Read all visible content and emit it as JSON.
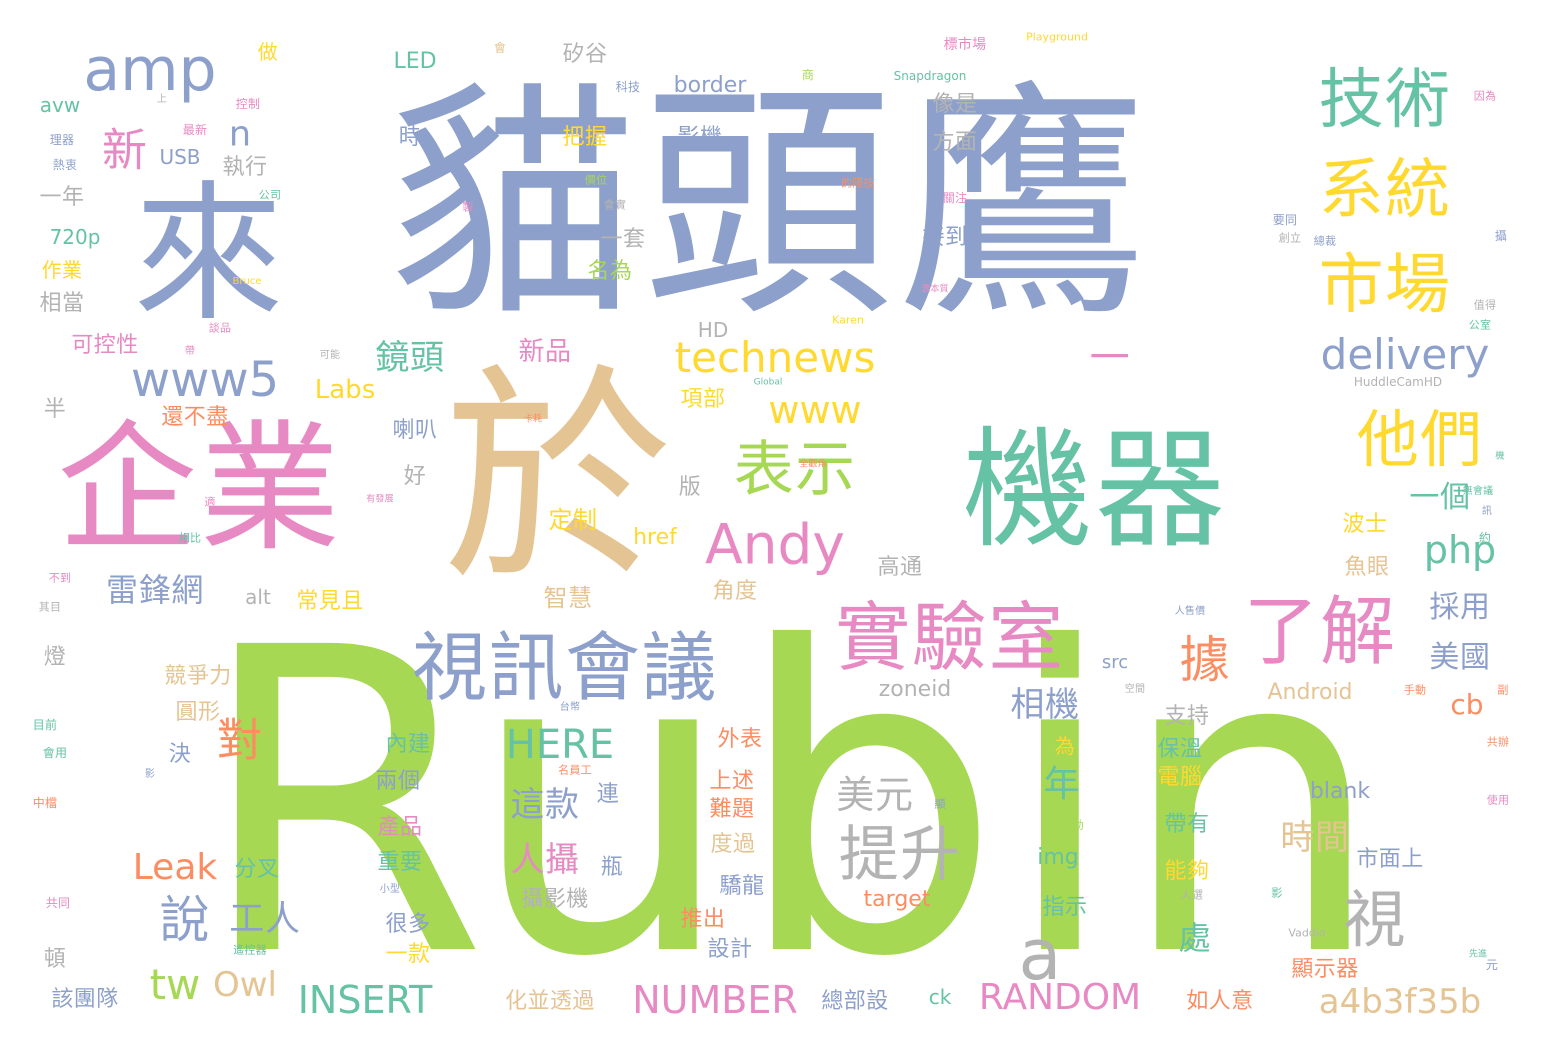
{
  "colors": {
    "green": "#a6d854",
    "blue": "#8da0cb",
    "teal": "#66c2a5",
    "orange": "#fc8d62",
    "pink": "#e78ac3",
    "yellow": "#ffd92f",
    "tan": "#e5c494",
    "gray": "#b3b3b3"
  },
  "words": [
    {
      "text": "Rubin",
      "color": "green"
    },
    {
      "text": "貓頭鷹",
      "color": "blue"
    },
    {
      "text": "於",
      "color": "tan"
    },
    {
      "text": "機器",
      "color": "teal"
    },
    {
      "text": "來",
      "color": "blue"
    },
    {
      "text": "企業",
      "color": "pink"
    },
    {
      "text": "一",
      "color": "pink"
    },
    {
      "text": "視訊會議",
      "color": "blue"
    },
    {
      "text": "實驗室",
      "color": "pink"
    },
    {
      "text": "了解",
      "color": "pink"
    },
    {
      "text": "技術",
      "color": "teal"
    },
    {
      "text": "系統",
      "color": "yellow"
    },
    {
      "text": "市場",
      "color": "yellow"
    },
    {
      "text": "他們",
      "color": "yellow"
    },
    {
      "text": "amp",
      "color": "blue"
    },
    {
      "text": "www5",
      "color": "blue"
    },
    {
      "text": "表示",
      "color": "green"
    },
    {
      "text": "technews",
      "color": "yellow"
    },
    {
      "text": "delivery",
      "color": "blue"
    },
    {
      "text": "Andy",
      "color": "pink"
    },
    {
      "text": "提升",
      "color": "gray"
    },
    {
      "text": "視",
      "color": "gray"
    },
    {
      "text": "據",
      "color": "orange"
    },
    {
      "text": "a",
      "color": "gray"
    },
    {
      "text": "新",
      "color": "pink"
    },
    {
      "text": "n",
      "color": "blue"
    },
    {
      "text": "對",
      "color": "orange"
    },
    {
      "text": "說",
      "color": "blue"
    },
    {
      "text": "www",
      "color": "yellow"
    },
    {
      "text": "php",
      "color": "teal"
    },
    {
      "text": "NUMBER",
      "color": "pink"
    },
    {
      "text": "RANDOM",
      "color": "pink"
    },
    {
      "text": "INSERT",
      "color": "teal"
    },
    {
      "text": "a4b3f35b",
      "color": "tan"
    },
    {
      "text": "tw",
      "color": "green"
    },
    {
      "text": "Owl",
      "color": "tan"
    },
    {
      "text": "工人",
      "color": "blue"
    },
    {
      "text": "HERE",
      "color": "teal"
    },
    {
      "text": "Leak",
      "color": "orange"
    },
    {
      "text": "鏡頭",
      "color": "teal"
    },
    {
      "text": "雷鋒網",
      "color": "blue"
    },
    {
      "text": "Labs",
      "color": "yellow"
    },
    {
      "text": "相機",
      "color": "blue"
    },
    {
      "text": "人攝",
      "color": "pink"
    },
    {
      "text": "這款",
      "color": "blue"
    },
    {
      "text": "美元",
      "color": "gray"
    },
    {
      "text": "一個",
      "color": "teal"
    },
    {
      "text": "採用",
      "color": "blue"
    },
    {
      "text": "美國",
      "color": "blue"
    },
    {
      "text": "年",
      "color": "teal"
    },
    {
      "text": "時間",
      "color": "tan"
    },
    {
      "text": "處",
      "color": "teal"
    },
    {
      "text": "cb",
      "color": "orange"
    },
    {
      "text": "一年",
      "color": "gray"
    },
    {
      "text": "新品",
      "color": "pink"
    },
    {
      "text": "執行",
      "color": "gray"
    },
    {
      "text": "把握",
      "color": "yellow"
    },
    {
      "text": "影機",
      "color": "blue"
    },
    {
      "text": "border",
      "color": "blue"
    },
    {
      "text": "矽谷",
      "color": "gray"
    },
    {
      "text": "LED",
      "color": "teal"
    },
    {
      "text": "像是",
      "color": "gray"
    },
    {
      "text": "方面",
      "color": "gray"
    },
    {
      "text": "接到",
      "color": "blue"
    },
    {
      "text": "一套",
      "color": "gray"
    },
    {
      "text": "名為",
      "color": "green"
    },
    {
      "text": "定制",
      "color": "yellow"
    },
    {
      "text": "href",
      "color": "yellow"
    },
    {
      "text": "智慧",
      "color": "tan"
    },
    {
      "text": "常見且",
      "color": "yellow"
    },
    {
      "text": "角度",
      "color": "tan"
    },
    {
      "text": "高通",
      "color": "gray"
    },
    {
      "text": "alt",
      "color": "gray"
    },
    {
      "text": "項部",
      "color": "yellow"
    },
    {
      "text": "版",
      "color": "gray"
    },
    {
      "text": "好",
      "color": "gray"
    },
    {
      "text": "喇叭",
      "color": "blue"
    },
    {
      "text": "還不盡",
      "color": "orange"
    },
    {
      "text": "半",
      "color": "gray"
    },
    {
      "text": "可控性",
      "color": "pink"
    },
    {
      "text": "相當",
      "color": "gray"
    },
    {
      "text": "作業",
      "color": "yellow"
    },
    {
      "text": "720p",
      "color": "teal"
    },
    {
      "text": "USB",
      "color": "blue"
    },
    {
      "text": "avw",
      "color": "teal"
    },
    {
      "text": "做",
      "color": "yellow"
    },
    {
      "text": "時",
      "color": "blue"
    },
    {
      "text": "HD",
      "color": "gray"
    },
    {
      "text": "zoneid",
      "color": "gray"
    },
    {
      "text": "src",
      "color": "blue"
    },
    {
      "text": "Android",
      "color": "tan"
    },
    {
      "text": "波士",
      "color": "yellow"
    },
    {
      "text": "魚眼",
      "color": "tan"
    },
    {
      "text": "競爭力",
      "color": "tan"
    },
    {
      "text": "圓形",
      "color": "tan"
    },
    {
      "text": "決",
      "color": "blue"
    },
    {
      "text": "內建",
      "color": "teal"
    },
    {
      "text": "兩個",
      "color": "blue"
    },
    {
      "text": "外表",
      "color": "orange"
    },
    {
      "text": "上述",
      "color": "orange"
    },
    {
      "text": "難題",
      "color": "orange"
    },
    {
      "text": "度過",
      "color": "tan"
    },
    {
      "text": "驕龍",
      "color": "blue"
    },
    {
      "text": "推出",
      "color": "orange"
    },
    {
      "text": "設計",
      "color": "blue"
    },
    {
      "text": "支持",
      "color": "gray"
    },
    {
      "text": "保溫",
      "color": "teal"
    },
    {
      "text": "電腦",
      "color": "yellow"
    },
    {
      "text": "帶有",
      "color": "teal"
    },
    {
      "text": "能夠",
      "color": "yellow"
    },
    {
      "text": "市面上",
      "color": "blue"
    },
    {
      "text": "blank",
      "color": "blue"
    },
    {
      "text": "img",
      "color": "teal"
    },
    {
      "text": "target",
      "color": "orange"
    },
    {
      "text": "指示",
      "color": "teal"
    },
    {
      "text": "產品",
      "color": "pink"
    },
    {
      "text": "重要",
      "color": "teal"
    },
    {
      "text": "很多",
      "color": "blue"
    },
    {
      "text": "一款",
      "color": "yellow"
    },
    {
      "text": "分叉",
      "color": "teal"
    },
    {
      "text": "攝影機",
      "color": "gray"
    },
    {
      "text": "瓶",
      "color": "blue"
    },
    {
      "text": "連",
      "color": "blue"
    },
    {
      "text": "為",
      "color": "yellow"
    },
    {
      "text": "燈",
      "color": "gray"
    },
    {
      "text": "頓",
      "color": "gray"
    },
    {
      "text": "該團隊",
      "color": "blue"
    },
    {
      "text": "化並透過",
      "color": "tan"
    },
    {
      "text": "總部設",
      "color": "blue"
    },
    {
      "text": "ck",
      "color": "teal"
    },
    {
      "text": "如人意",
      "color": "orange"
    },
    {
      "text": "顯示器",
      "color": "orange"
    },
    {
      "text": "Playground",
      "color": "yellow"
    },
    {
      "text": "標市場",
      "color": "pink"
    },
    {
      "text": "Snapdragon",
      "color": "teal"
    },
    {
      "text": "HuddleCamHD",
      "color": "gray"
    },
    {
      "text": "Vaddio",
      "color": "gray"
    },
    {
      "text": "Karen",
      "color": "yellow"
    },
    {
      "text": "Bruce",
      "color": "yellow"
    },
    {
      "text": "Global",
      "color": "teal"
    },
    {
      "text": "理器",
      "color": "blue"
    },
    {
      "text": "熱衷",
      "color": "blue"
    },
    {
      "text": "公司",
      "color": "teal"
    },
    {
      "text": "最新",
      "color": "pink"
    },
    {
      "text": "控制",
      "color": "pink"
    },
    {
      "text": "科技",
      "color": "blue"
    },
    {
      "text": "價位",
      "color": "green"
    },
    {
      "text": "會",
      "color": "tan"
    },
    {
      "text": "商",
      "color": "green"
    },
    {
      "text": "的隱技",
      "color": "orange"
    },
    {
      "text": "關注",
      "color": "pink"
    },
    {
      "text": "創立",
      "color": "gray"
    },
    {
      "text": "總裁",
      "color": "blue"
    },
    {
      "text": "值得",
      "color": "gray"
    },
    {
      "text": "公室",
      "color": "teal"
    },
    {
      "text": "因為",
      "color": "pink"
    },
    {
      "text": "攝",
      "color": "blue"
    },
    {
      "text": "全觀角",
      "color": "orange"
    },
    {
      "text": "人售價",
      "color": "blue"
    },
    {
      "text": "空間",
      "color": "gray"
    },
    {
      "text": "手動",
      "color": "orange"
    },
    {
      "text": "副",
      "color": "orange"
    },
    {
      "text": "共辦",
      "color": "orange"
    },
    {
      "text": "使用",
      "color": "pink"
    },
    {
      "text": "元",
      "color": "blue"
    },
    {
      "text": "先進",
      "color": "teal"
    },
    {
      "text": "影",
      "color": "teal"
    },
    {
      "text": "人選",
      "color": "gray"
    },
    {
      "text": "並自動",
      "color": "green"
    },
    {
      "text": "名員工",
      "color": "orange"
    },
    {
      "text": "台幣",
      "color": "blue"
    },
    {
      "text": "遙控器",
      "color": "teal"
    },
    {
      "text": "小型",
      "color": "blue"
    },
    {
      "text": "共同",
      "color": "pink"
    },
    {
      "text": "中檔",
      "color": "orange"
    },
    {
      "text": "會用",
      "color": "teal"
    },
    {
      "text": "目前",
      "color": "teal"
    },
    {
      "text": "影",
      "color": "blue"
    },
    {
      "text": "有發展",
      "color": "pink"
    },
    {
      "text": "適",
      "color": "pink"
    },
    {
      "text": "相比",
      "color": "teal"
    },
    {
      "text": "不到",
      "color": "pink"
    },
    {
      "text": "其目",
      "color": "gray"
    },
    {
      "text": "卡耗",
      "color": "orange"
    },
    {
      "text": "談品",
      "color": "pink"
    },
    {
      "text": "上",
      "color": "gray"
    },
    {
      "text": "可能",
      "color": "gray"
    },
    {
      "text": "製",
      "color": "pink"
    },
    {
      "text": "會實",
      "color": "gray"
    },
    {
      "text": "黑",
      "color": "blue"
    },
    {
      "text": "選本質",
      "color": "pink"
    },
    {
      "text": "機",
      "color": "teal"
    },
    {
      "text": "無會議",
      "color": "teal"
    },
    {
      "text": "訊",
      "color": "blue"
    },
    {
      "text": "約",
      "color": "teal"
    },
    {
      "text": "顯",
      "color": "blue"
    },
    {
      "text": "帶",
      "color": "pink"
    },
    {
      "text": "要同",
      "color": "blue"
    }
  ]
}
